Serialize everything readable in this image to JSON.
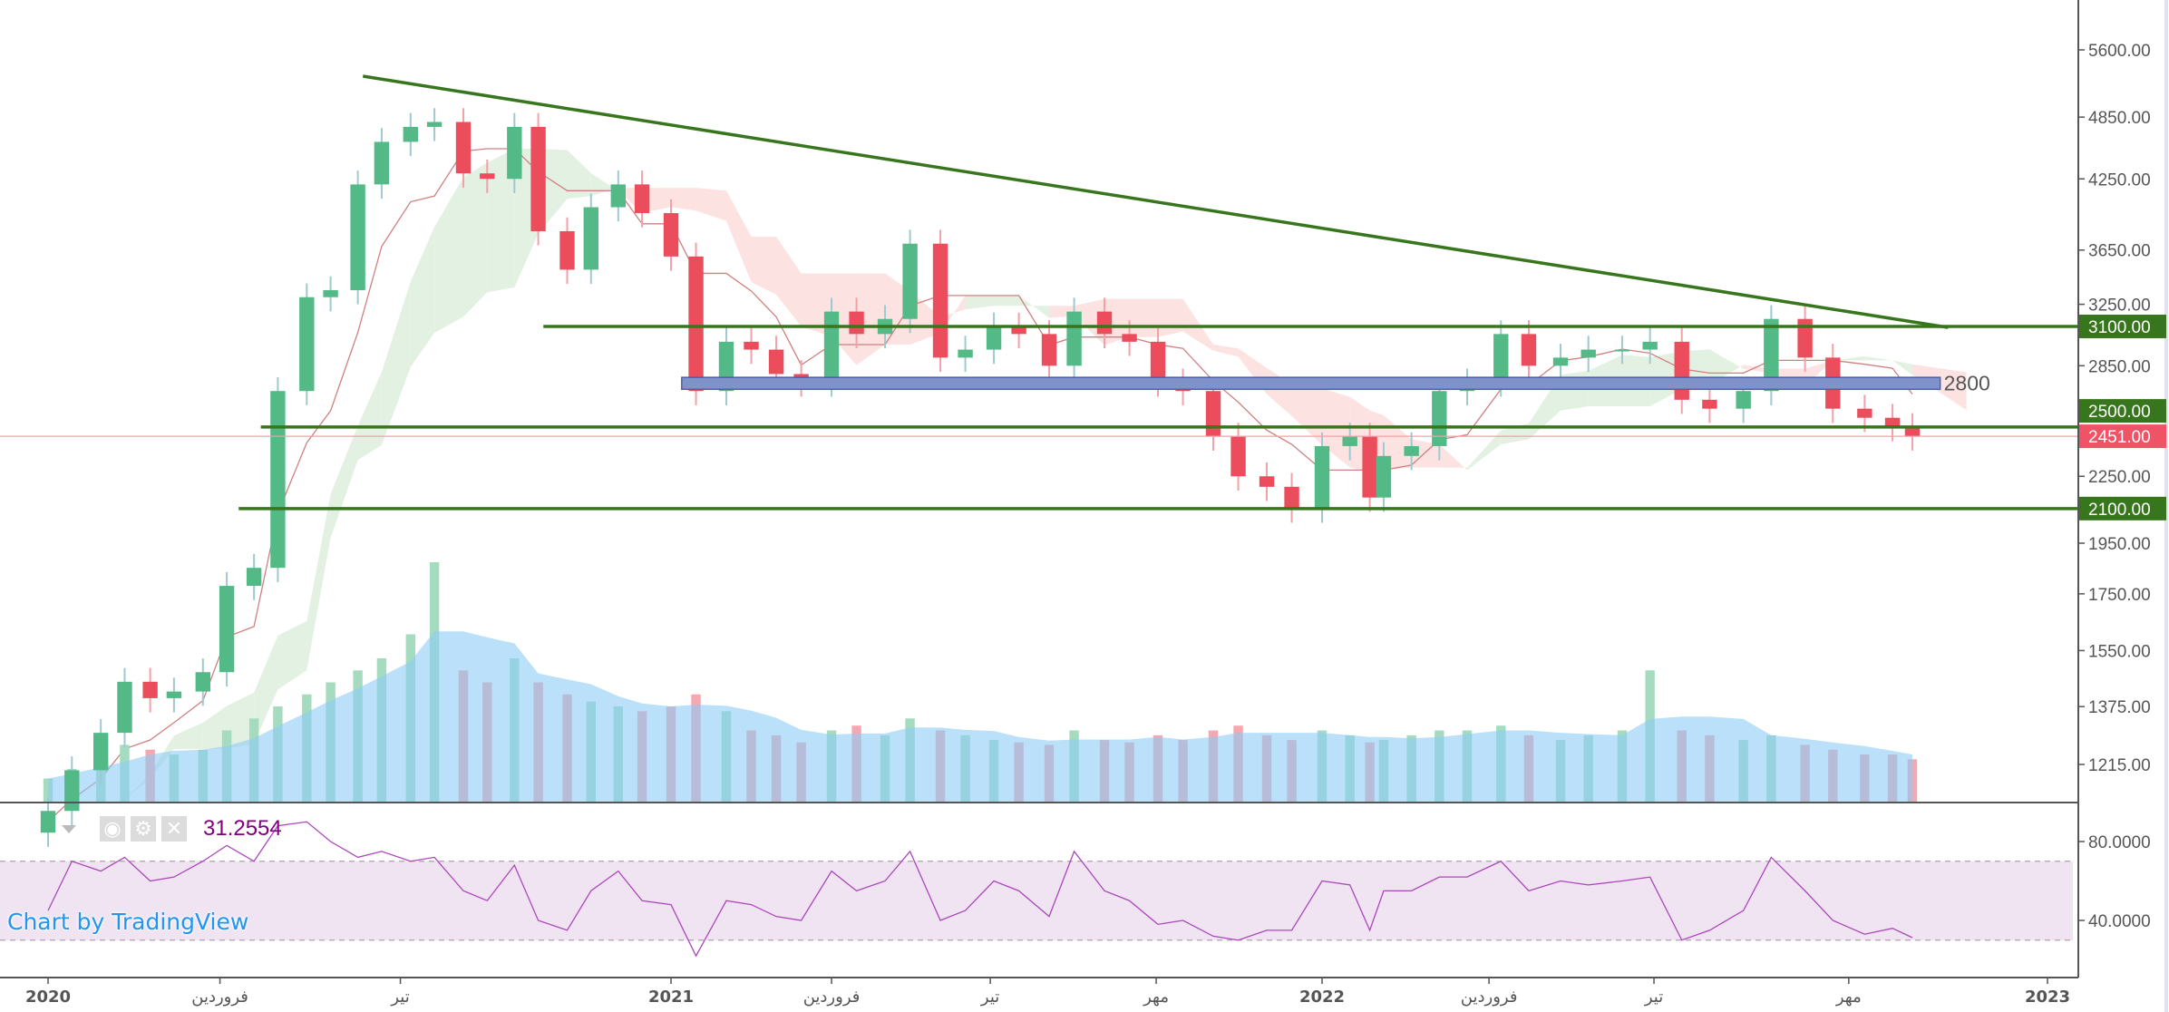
{
  "chart_data": {
    "type": "candlestick",
    "price_scale": "log",
    "price_ticks": [
      "5600.00",
      "4850.00",
      "4250.00",
      "3650.00",
      "3250.00",
      "2850.00",
      "2250.00",
      "1950.00",
      "1750.00",
      "1550.00",
      "1375.00",
      "1215.00"
    ],
    "time_ticks": [
      {
        "label": "2020",
        "date": "2020-01-01",
        "bold": true
      },
      {
        "label": "فروردین",
        "date": "2020-04-11"
      },
      {
        "label": "تیر",
        "date": "2020-07-26"
      },
      {
        "label": "2021",
        "date": "2021-01-01",
        "bold": true
      },
      {
        "label": "فروردین",
        "date": "2021-04-01"
      },
      {
        "label": "تیر",
        "date": "2021-06-29"
      },
      {
        "label": "مهر",
        "date": "2021-09-30"
      },
      {
        "label": "2022",
        "date": "2022-01-01",
        "bold": true
      },
      {
        "label": "فروردین",
        "date": "2022-03-26"
      },
      {
        "label": "تیر",
        "date": "2022-06-17"
      },
      {
        "label": "مهر",
        "date": "2022-09-23"
      },
      {
        "label": "2023",
        "date": "2023-01-01",
        "bold": true
      }
    ],
    "dates": [
      "2020-01-01",
      "2020-01-15",
      "2020-02-01",
      "2020-02-15",
      "2020-03-01",
      "2020-03-15",
      "2020-04-01",
      "2020-04-15",
      "2020-05-01",
      "2020-05-15",
      "2020-06-01",
      "2020-06-15",
      "2020-07-01",
      "2020-07-15",
      "2020-08-01",
      "2020-08-15",
      "2020-09-01",
      "2020-09-15",
      "2020-10-01",
      "2020-10-15",
      "2020-11-01",
      "2020-11-15",
      "2020-12-01",
      "2020-12-15",
      "2021-01-01",
      "2021-01-15",
      "2021-02-01",
      "2021-02-15",
      "2021-03-01",
      "2021-03-15",
      "2021-04-01",
      "2021-04-15",
      "2021-05-01",
      "2021-05-15",
      "2021-06-01",
      "2021-06-15",
      "2021-07-01",
      "2021-07-15",
      "2021-08-01",
      "2021-08-15",
      "2021-09-01",
      "2021-09-15",
      "2021-10-01",
      "2021-10-15",
      "2021-11-01",
      "2021-11-15",
      "2021-12-01",
      "2021-12-15",
      "2022-01-01",
      "2022-01-15",
      "2022-01-25",
      "2022-02-01",
      "2022-02-15",
      "2022-03-01",
      "2022-03-15",
      "2022-04-01",
      "2022-04-15",
      "2022-05-01",
      "2022-05-15",
      "2022-06-01",
      "2022-06-15",
      "2022-07-01",
      "2022-07-15",
      "2022-08-01",
      "2022-08-15",
      "2022-09-01",
      "2022-09-15",
      "2022-10-01",
      "2022-10-15",
      "2022-10-25"
    ],
    "close": [
      1100,
      1200,
      1300,
      1450,
      1400,
      1420,
      1480,
      1780,
      1850,
      2700,
      3300,
      3350,
      4200,
      4600,
      4750,
      4800,
      4300,
      4250,
      4750,
      3800,
      3500,
      4000,
      4200,
      3950,
      3600,
      2700,
      3000,
      2950,
      2800,
      2750,
      3200,
      3050,
      3150,
      3700,
      2900,
      2950,
      3100,
      3050,
      2850,
      3200,
      3050,
      3000,
      2750,
      2700,
      2450,
      2250,
      2200,
      2100,
      2400,
      2450,
      2150,
      2350,
      2400,
      2700,
      2750,
      3050,
      2850,
      2900,
      2950,
      2950,
      3000,
      2650,
      2600,
      2700,
      3150,
      2900,
      2600,
      2550,
      2500,
      2451
    ],
    "volume": [
      10,
      14,
      20,
      24,
      22,
      20,
      22,
      30,
      35,
      40,
      45,
      50,
      55,
      60,
      70,
      100,
      55,
      50,
      60,
      50,
      45,
      42,
      40,
      38,
      40,
      45,
      38,
      30,
      28,
      25,
      30,
      32,
      28,
      35,
      30,
      28,
      26,
      25,
      24,
      30,
      26,
      25,
      28,
      26,
      30,
      32,
      28,
      26,
      30,
      28,
      25,
      26,
      28,
      30,
      30,
      32,
      28,
      26,
      28,
      30,
      55,
      30,
      28,
      26,
      28,
      24,
      22,
      20,
      20,
      18
    ],
    "rsi": [
      45,
      70,
      65,
      72,
      60,
      62,
      70,
      78,
      70,
      88,
      90,
      80,
      72,
      75,
      70,
      72,
      55,
      50,
      68,
      40,
      35,
      55,
      65,
      50,
      48,
      22,
      50,
      48,
      42,
      40,
      65,
      55,
      60,
      75,
      40,
      45,
      60,
      55,
      42,
      75,
      55,
      50,
      38,
      40,
      32,
      30,
      35,
      35,
      60,
      58,
      35,
      55,
      55,
      62,
      62,
      70,
      55,
      60,
      58,
      60,
      62,
      30,
      35,
      45,
      72,
      55,
      40,
      33,
      36,
      31.2554
    ],
    "rsi_ticks": [
      "80.0000",
      "40.0000"
    ],
    "rsi_band": [
      30,
      70
    ],
    "last_price": "2451.00",
    "levels": [
      {
        "price": 3100,
        "label": "3100.00",
        "from": "2020-10-18"
      },
      {
        "price": 2500,
        "label": "2500.00",
        "from": "2020-05-05"
      },
      {
        "price": 2100,
        "label": "2100.00",
        "from": "2020-04-22"
      }
    ],
    "trendline": {
      "from": {
        "date": "2020-07-04",
        "price": 5294
      },
      "to": {
        "date": "2022-11-12",
        "price": 3093
      }
    },
    "zone": {
      "from": "2021-01-07",
      "to": "2022-11-08",
      "low": 2710,
      "high": 2780,
      "label": "2800"
    },
    "colors": {
      "up": "#53b987",
      "down": "#eb4d5c",
      "level": "#38761d",
      "zone": "#7f93c9",
      "last": "#ef5366",
      "rsi": "#ab47bc",
      "cloud_up": "#e3f1e3",
      "cloud_down": "#fde2e2",
      "volume_ma": "#8ecbf5"
    }
  },
  "legend": {
    "rsi_value": "31.2554",
    "icons": [
      "chevron-down-icon",
      "eye-icon",
      "gear-icon",
      "close-icon"
    ]
  },
  "watermark": "Chart by TradingView"
}
